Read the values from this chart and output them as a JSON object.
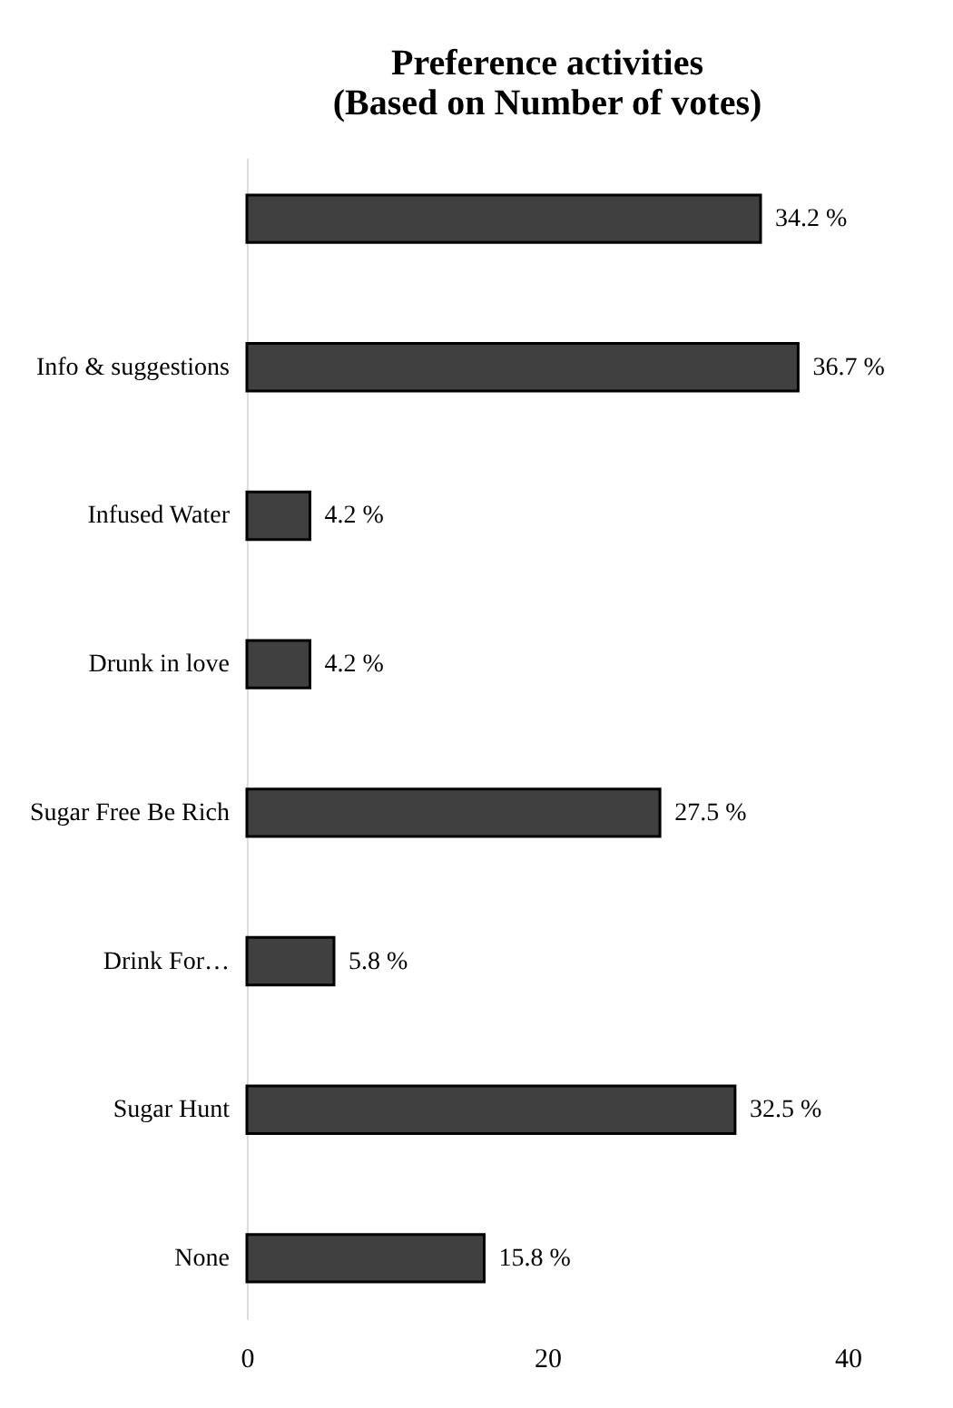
{
  "chart_data": {
    "type": "bar",
    "orientation": "horizontal",
    "title": "Preference activities\n(Based on Number of votes)",
    "categories": [
      null,
      "Info & suggestions",
      "Infused Water",
      "Drunk in love",
      "Sugar Free Be Rich",
      "Drink For…",
      "Sugar Hunt",
      "None"
    ],
    "values": [
      34.2,
      36.7,
      4.2,
      4.2,
      27.5,
      5.8,
      32.5,
      15.8
    ],
    "value_labels": [
      "34.2 %",
      "36.7 %",
      "4.2 %",
      "4.2 %",
      "27.5 %",
      "5.8 %",
      "32.5 %",
      "15.8 %"
    ],
    "color": "#404040",
    "xlim": [
      0,
      40
    ],
    "xticks": [
      0,
      20,
      40
    ],
    "grid": false
  }
}
